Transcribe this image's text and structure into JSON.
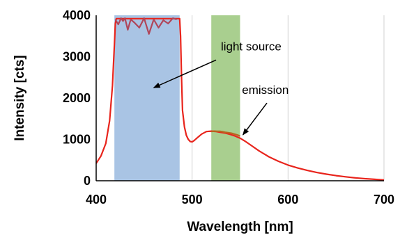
{
  "chart_data": {
    "type": "line",
    "title": "",
    "xlabel": "Wavelength [nm]",
    "ylabel": "Intensity [cts]",
    "xlim": [
      400,
      700
    ],
    "ylim": [
      0,
      4000
    ],
    "x_ticks": [
      400,
      500,
      600,
      700
    ],
    "y_ticks": [
      0,
      1000,
      2000,
      3000,
      4000
    ],
    "grid": "vertical",
    "bands": [
      {
        "from": 419,
        "to": 487,
        "color": "#a9c4e4"
      },
      {
        "from": 520,
        "to": 550,
        "color": "#a9cf8f"
      }
    ],
    "series": [
      {
        "color": "#e8241c",
        "x": [
          400,
          405,
          410,
          414,
          417,
          419,
          420,
          421,
          487,
          488,
          489,
          490,
          492,
          494,
          496,
          498,
          500,
          502,
          505,
          510,
          515,
          520,
          525,
          530,
          535,
          540,
          545,
          550,
          555,
          560,
          565,
          570,
          575,
          580,
          590,
          600,
          610,
          620,
          630,
          640,
          650,
          660,
          670,
          680,
          690,
          700
        ],
        "y": [
          420,
          600,
          900,
          1450,
          2300,
          3300,
          3800,
          3920,
          3920,
          3500,
          2500,
          1700,
          1300,
          1100,
          1000,
          950,
          940,
          970,
          1030,
          1130,
          1190,
          1200,
          1190,
          1170,
          1150,
          1120,
          1080,
          1030,
          960,
          880,
          800,
          720,
          650,
          580,
          470,
          380,
          310,
          250,
          200,
          160,
          125,
          95,
          70,
          50,
          35,
          20
        ]
      },
      {
        "color": "#b0465a",
        "x": [
          420,
          423,
          426,
          428,
          430,
          433,
          436,
          440,
          445,
          450,
          455,
          460,
          465,
          470,
          475,
          480,
          484
        ],
        "y": [
          3900,
          3780,
          3930,
          3860,
          3930,
          3650,
          3900,
          3820,
          3700,
          3930,
          3550,
          3900,
          3700,
          3880,
          3800,
          3930,
          3900
        ]
      },
      {
        "color": "#b8651f",
        "x": [
          520,
          523,
          526,
          529,
          532,
          535,
          538,
          541,
          544,
          547,
          550
        ],
        "y": [
          1190,
          1200,
          1195,
          1195,
          1185,
          1170,
          1160,
          1150,
          1130,
          1110,
          1080
        ]
      }
    ],
    "annotations": [
      {
        "text": "light source",
        "text_x": 530,
        "text_y": 3150,
        "arrow_from": [
          525,
          2920
        ],
        "arrow_to": [
          460,
          2250
        ]
      },
      {
        "text": "emission",
        "text_x": 552,
        "text_y": 2100,
        "arrow_from": [
          578,
          1880
        ],
        "arrow_to": [
          553,
          1110
        ]
      }
    ]
  }
}
